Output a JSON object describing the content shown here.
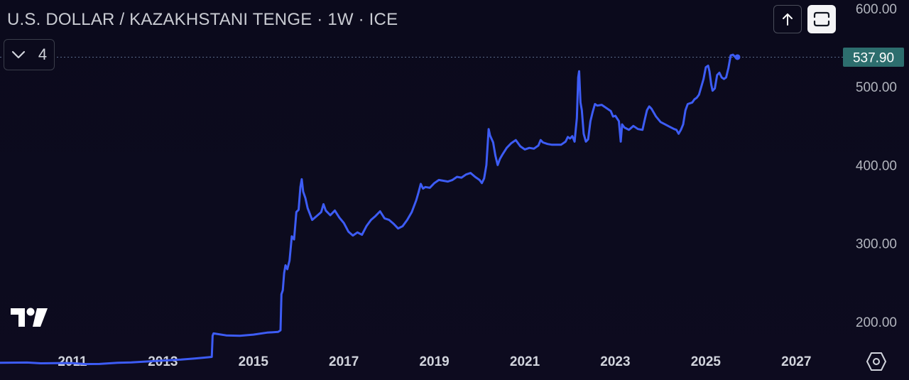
{
  "header": {
    "title": "U.S. DOLLAR / KAZAKHSTANI TENGE · 1W · ICE",
    "collapse_count": "4"
  },
  "toolbar": {
    "up_icon": "arrow-up-icon",
    "fullscreen_icon": "fullscreen-icon",
    "settings_icon": "settings-hexagon-icon",
    "logo_icon": "tradingview-logo-icon"
  },
  "colors": {
    "background": "#0c0b1e",
    "line": "#3d5cf5",
    "price_badge": "#2d6e6e",
    "axis_text": "#b2b5be"
  },
  "chart_data": {
    "type": "line",
    "title": "U.S. DOLLAR / KAZAKHSTANI TENGE · 1W · ICE",
    "xlabel": "",
    "ylabel": "",
    "xlim": [
      2009.4,
      2028.0
    ],
    "ylim": [
      140,
      600
    ],
    "y_ticks": [
      "600.00",
      "500.00",
      "400.00",
      "300.00",
      "200.00"
    ],
    "y_tick_values": [
      600,
      500,
      400,
      300,
      200
    ],
    "x_ticks": [
      "2011",
      "2013",
      "2015",
      "2017",
      "2019",
      "2021",
      "2023",
      "2025",
      "2027"
    ],
    "x_tick_values": [
      2011,
      2013,
      2015,
      2017,
      2019,
      2021,
      2023,
      2025,
      2027
    ],
    "last_price": 537.9,
    "last_price_label": "537.90",
    "grid": false,
    "series": [
      {
        "values": [
          [
            2009.4,
            147.5
          ],
          [
            2010.0,
            147.8
          ],
          [
            2010.3,
            146.8
          ],
          [
            2010.8,
            147.2
          ],
          [
            2011.0,
            147.0
          ],
          [
            2011.3,
            145.8
          ],
          [
            2011.6,
            146.0
          ],
          [
            2012.0,
            147.5
          ],
          [
            2012.3,
            148.0
          ],
          [
            2012.6,
            149.0
          ],
          [
            2013.0,
            150.3
          ],
          [
            2013.4,
            151.5
          ],
          [
            2013.7,
            153.0
          ],
          [
            2014.0,
            154.5
          ],
          [
            2014.08,
            155.0
          ],
          [
            2014.1,
            182.0
          ],
          [
            2014.12,
            185.0
          ],
          [
            2014.4,
            182.5
          ],
          [
            2014.7,
            182.0
          ],
          [
            2015.0,
            183.5
          ],
          [
            2015.3,
            186.0
          ],
          [
            2015.55,
            187.0
          ],
          [
            2015.6,
            189.0
          ],
          [
            2015.62,
            235.0
          ],
          [
            2015.65,
            240.0
          ],
          [
            2015.68,
            262.0
          ],
          [
            2015.71,
            272.0
          ],
          [
            2015.75,
            267.0
          ],
          [
            2015.8,
            278.0
          ],
          [
            2015.85,
            309.0
          ],
          [
            2015.9,
            305.0
          ],
          [
            2015.95,
            340.0
          ],
          [
            2016.0,
            343.0
          ],
          [
            2016.04,
            372.0
          ],
          [
            2016.07,
            382.0
          ],
          [
            2016.1,
            366.0
          ],
          [
            2016.15,
            358.0
          ],
          [
            2016.2,
            345.0
          ],
          [
            2016.3,
            330.0
          ],
          [
            2016.4,
            335.0
          ],
          [
            2016.5,
            340.0
          ],
          [
            2016.55,
            350.0
          ],
          [
            2016.6,
            342.0
          ],
          [
            2016.7,
            336.0
          ],
          [
            2016.8,
            342.0
          ],
          [
            2016.9,
            333.0
          ],
          [
            2017.0,
            326.0
          ],
          [
            2017.1,
            315.0
          ],
          [
            2017.2,
            310.0
          ],
          [
            2017.3,
            314.0
          ],
          [
            2017.4,
            311.0
          ],
          [
            2017.5,
            322.0
          ],
          [
            2017.6,
            330.0
          ],
          [
            2017.7,
            335.0
          ],
          [
            2017.8,
            341.0
          ],
          [
            2017.9,
            332.0
          ],
          [
            2018.0,
            330.0
          ],
          [
            2018.1,
            325.0
          ],
          [
            2018.2,
            319.0
          ],
          [
            2018.3,
            322.0
          ],
          [
            2018.4,
            330.0
          ],
          [
            2018.5,
            340.0
          ],
          [
            2018.6,
            355.0
          ],
          [
            2018.65,
            365.0
          ],
          [
            2018.7,
            376.0
          ],
          [
            2018.75,
            370.0
          ],
          [
            2018.8,
            372.0
          ],
          [
            2018.9,
            371.0
          ],
          [
            2019.0,
            377.0
          ],
          [
            2019.1,
            381.0
          ],
          [
            2019.2,
            380.0
          ],
          [
            2019.3,
            379.0
          ],
          [
            2019.4,
            381.0
          ],
          [
            2019.5,
            385.0
          ],
          [
            2019.6,
            384.0
          ],
          [
            2019.7,
            388.0
          ],
          [
            2019.8,
            390.0
          ],
          [
            2019.9,
            385.0
          ],
          [
            2020.0,
            381.0
          ],
          [
            2020.05,
            377.0
          ],
          [
            2020.1,
            383.0
          ],
          [
            2020.15,
            400.0
          ],
          [
            2020.2,
            446.0
          ],
          [
            2020.23,
            438.0
          ],
          [
            2020.3,
            429.0
          ],
          [
            2020.35,
            412.0
          ],
          [
            2020.4,
            400.0
          ],
          [
            2020.45,
            408.0
          ],
          [
            2020.5,
            413.0
          ],
          [
            2020.6,
            422.0
          ],
          [
            2020.7,
            428.0
          ],
          [
            2020.8,
            432.0
          ],
          [
            2020.9,
            424.0
          ],
          [
            2021.0,
            420.0
          ],
          [
            2021.1,
            422.0
          ],
          [
            2021.2,
            421.0
          ],
          [
            2021.3,
            425.0
          ],
          [
            2021.35,
            432.0
          ],
          [
            2021.4,
            429.0
          ],
          [
            2021.5,
            427.0
          ],
          [
            2021.6,
            426.0
          ],
          [
            2021.7,
            426.0
          ],
          [
            2021.8,
            426.0
          ],
          [
            2021.9,
            430.0
          ],
          [
            2021.95,
            436.0
          ],
          [
            2022.0,
            434.0
          ],
          [
            2022.05,
            437.0
          ],
          [
            2022.1,
            430.0
          ],
          [
            2022.15,
            460.0
          ],
          [
            2022.18,
            512.0
          ],
          [
            2022.2,
            520.0
          ],
          [
            2022.23,
            480.0
          ],
          [
            2022.26,
            470.0
          ],
          [
            2022.3,
            440.0
          ],
          [
            2022.35,
            430.0
          ],
          [
            2022.4,
            433.0
          ],
          [
            2022.45,
            456.0
          ],
          [
            2022.5,
            468.0
          ],
          [
            2022.55,
            478.0
          ],
          [
            2022.6,
            476.0
          ],
          [
            2022.7,
            477.0
          ],
          [
            2022.8,
            473.0
          ],
          [
            2022.9,
            469.0
          ],
          [
            2022.95,
            462.0
          ],
          [
            2023.0,
            463.0
          ],
          [
            2023.08,
            456.0
          ],
          [
            2023.12,
            430.0
          ],
          [
            2023.15,
            452.0
          ],
          [
            2023.2,
            448.0
          ],
          [
            2023.3,
            445.0
          ],
          [
            2023.4,
            450.0
          ],
          [
            2023.5,
            446.0
          ],
          [
            2023.6,
            445.0
          ],
          [
            2023.65,
            458.0
          ],
          [
            2023.7,
            470.0
          ],
          [
            2023.75,
            475.0
          ],
          [
            2023.8,
            472.0
          ],
          [
            2023.9,
            462.0
          ],
          [
            2024.0,
            455.0
          ],
          [
            2024.1,
            452.0
          ],
          [
            2024.2,
            449.0
          ],
          [
            2024.3,
            446.0
          ],
          [
            2024.35,
            445.0
          ],
          [
            2024.4,
            440.0
          ],
          [
            2024.45,
            445.0
          ],
          [
            2024.5,
            452.0
          ],
          [
            2024.55,
            470.0
          ],
          [
            2024.6,
            478.0
          ],
          [
            2024.7,
            480.0
          ],
          [
            2024.75,
            484.0
          ],
          [
            2024.8,
            486.0
          ],
          [
            2024.85,
            490.0
          ],
          [
            2024.9,
            500.0
          ],
          [
            2024.95,
            510.0
          ],
          [
            2025.0,
            525.0
          ],
          [
            2025.05,
            527.0
          ],
          [
            2025.08,
            520.0
          ],
          [
            2025.12,
            503.0
          ],
          [
            2025.15,
            495.0
          ],
          [
            2025.2,
            498.0
          ],
          [
            2025.25,
            515.0
          ],
          [
            2025.3,
            518.0
          ],
          [
            2025.35,
            512.0
          ],
          [
            2025.4,
            510.0
          ],
          [
            2025.45,
            512.0
          ],
          [
            2025.5,
            524.0
          ],
          [
            2025.55,
            540.0
          ],
          [
            2025.6,
            541.0
          ],
          [
            2025.65,
            538.0
          ],
          [
            2025.7,
            537.9
          ]
        ]
      }
    ]
  }
}
